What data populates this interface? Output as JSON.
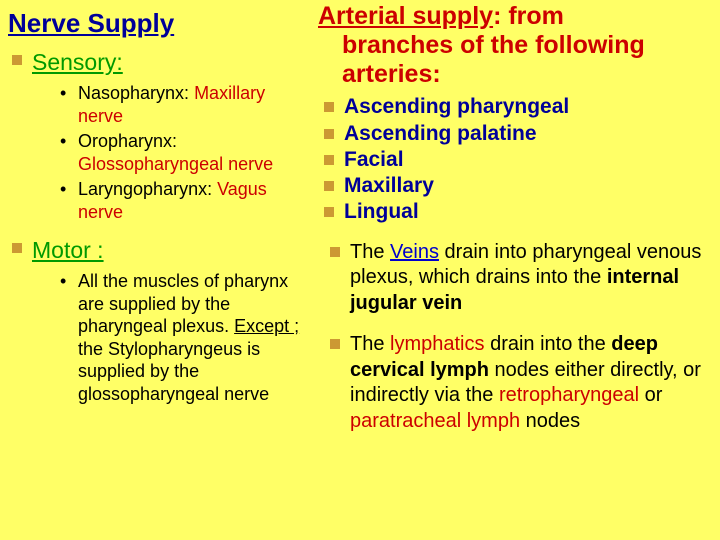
{
  "left": {
    "title": "Nerve Supply",
    "sensory_head": "Sensory:",
    "sensory_items": {
      "a_pre": "Nasopharynx: ",
      "a_red": "Maxillary nerve",
      "b_pre": "Oropharynx: ",
      "b_red": "Glossopharyngeal nerve",
      "c_pre": "Laryngopharynx: ",
      "c_red": "Vagus nerve"
    },
    "motor_head": "Motor :",
    "motor_item": {
      "p1": "All the muscles of pharynx are supplied by the pharyngeal plexus. ",
      "except": "Except ;",
      "p2": " the Stylopharyngeus is supplied by the glossopharyngeal nerve"
    }
  },
  "right": {
    "title_lead": "Arterial supply",
    "title_colon": ":",
    "title_rest1": " from",
    "title_rest2": "branches of the following arteries:",
    "arteries": {
      "a": "Ascending pharyngeal",
      "b": "Ascending palatine",
      "c": "Facial",
      "d": "Maxillary",
      "e": "Lingual"
    },
    "veins": {
      "pre": "The ",
      "link": "Veins",
      "mid": " drain into pharyngeal venous plexus, which drains into the ",
      "bold": "internal jugular vein"
    },
    "lymph": {
      "pre": "The ",
      "red1": "lymphatics",
      "mid1": " drain into the ",
      "bold1": "deep cervical lymph",
      "mid2": " nodes either directly, or indirectly via the ",
      "red2": "retropharyngeal",
      "or": " or ",
      "red3": "paratracheal lymph",
      "tail": " nodes"
    }
  }
}
